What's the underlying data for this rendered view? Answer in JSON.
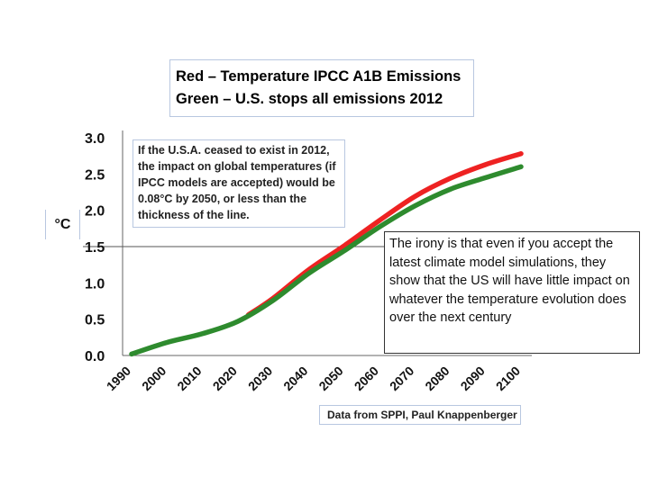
{
  "legend": {
    "red_label": "Red – Temperature IPCC A1B Emissions",
    "green_label": "Green – U.S. stops all emissions 2012"
  },
  "note": "If the U.S.A. ceased to exist in 2012, the impact on global temperatures (if IPCC models are accepted) would be 0.08°C by 2050, or less than the thickness of the line.",
  "irony": "The irony is that even if you accept the latest climate model simulations, they show that the US will have little impact on whatever the temperature evolution does over the next century",
  "source": "Data from SPPI, Paul Knappenberger",
  "colors": {
    "red_series": "#ee2222",
    "green_series": "#2e8b2e",
    "frame": "#b8c7e0"
  },
  "chart_data": {
    "type": "line",
    "title": "",
    "xlabel": "",
    "ylabel": "°C",
    "xlim": [
      1990,
      2100
    ],
    "ylim": [
      0.0,
      3.0
    ],
    "x_ticks": [
      "1990",
      "2000",
      "2010",
      "2020",
      "2030",
      "2040",
      "2050",
      "2060",
      "2070",
      "2080",
      "2090",
      "2100"
    ],
    "y_ticks": [
      "0.0",
      "0.5",
      "1.0",
      "1.5",
      "2.0",
      "2.5",
      "3.0"
    ],
    "grid": false,
    "series": [
      {
        "name": "Red – Temperature IPCC A1B Emissions",
        "color": "#ee2222",
        "x": [
          2023,
          2030,
          2040,
          2050,
          2060,
          2070,
          2080,
          2090,
          2100
        ],
        "y": [
          0.56,
          0.79,
          1.18,
          1.51,
          1.86,
          2.19,
          2.44,
          2.63,
          2.78
        ]
      },
      {
        "name": "Green – U.S. stops all emissions 2012",
        "color": "#2e8b2e",
        "x": [
          1990,
          2000,
          2010,
          2020,
          2030,
          2040,
          2050,
          2060,
          2070,
          2080,
          2090,
          2100
        ],
        "y": [
          0.02,
          0.18,
          0.3,
          0.47,
          0.76,
          1.13,
          1.44,
          1.77,
          2.06,
          2.29,
          2.45,
          2.6
        ]
      }
    ]
  }
}
